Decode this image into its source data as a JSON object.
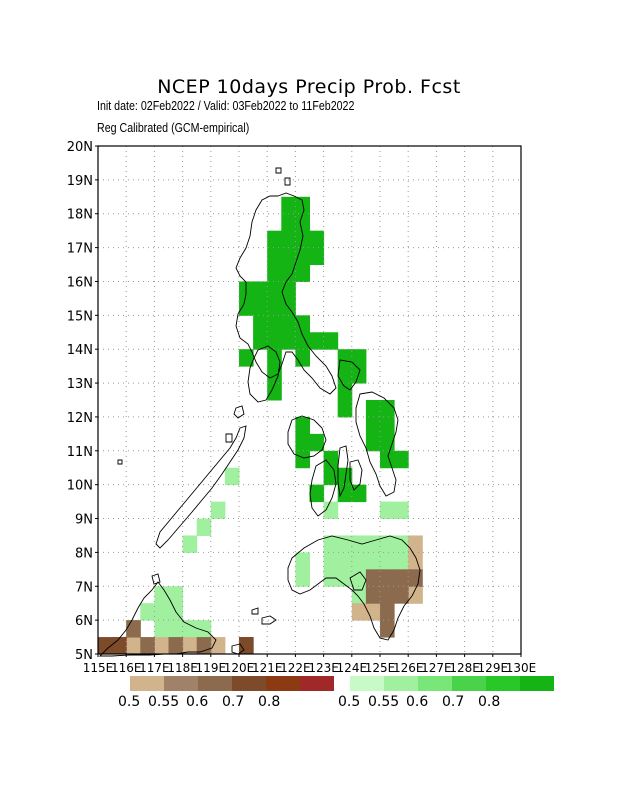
{
  "header": {
    "title": "NCEP 10days Precip Prob. Fcst",
    "subtitle1": "Init date: 02Feb2022 / Valid: 03Feb2022 to 11Feb2022",
    "subtitle2": "Reg Calibrated (GCM-empirical)"
  },
  "axes": {
    "lat_labels": [
      "5N",
      "6N",
      "7N",
      "8N",
      "9N",
      "10N",
      "11N",
      "12N",
      "13N",
      "14N",
      "15N",
      "16N",
      "17N",
      "18N",
      "19N",
      "20N"
    ],
    "lon_labels": [
      "115E",
      "116E",
      "117E",
      "118E",
      "119E",
      "120E",
      "121E",
      "122E",
      "123E",
      "124E",
      "125E",
      "126E",
      "127E",
      "128E",
      "129E",
      "130E"
    ],
    "lat_range": [
      5,
      20
    ],
    "lon_range": [
      115,
      130
    ],
    "grid": true
  },
  "legend_dry": {
    "labels": [
      "0.5",
      "0.55",
      "0.6",
      "0.7",
      "0.8"
    ],
    "colors": [
      "#d2b48c",
      "#a08268",
      "#8b6a4e",
      "#7d4b2a",
      "#8b3a14",
      "#a02828"
    ]
  },
  "legend_wet": {
    "labels": [
      "0.5",
      "0.55",
      "0.6",
      "0.7",
      "0.8"
    ],
    "colors": [
      "#c8fac8",
      "#a0f0a0",
      "#78e678",
      "#4ad24a",
      "#28c828",
      "#14b414"
    ]
  },
  "chart_data": {
    "type": "heatmap",
    "cell_deg": 0.5,
    "wet_cells": [
      [
        121.5,
        18
      ],
      [
        122,
        18
      ],
      [
        121.5,
        17.5
      ],
      [
        122,
        17.5
      ],
      [
        121,
        17
      ],
      [
        121.5,
        17
      ],
      [
        122,
        17
      ],
      [
        122.5,
        17
      ],
      [
        121,
        16.5
      ],
      [
        121.5,
        16.5
      ],
      [
        122,
        16.5
      ],
      [
        122.5,
        16.5
      ],
      [
        121,
        16
      ],
      [
        121.5,
        16
      ],
      [
        122,
        16
      ],
      [
        120,
        15.5
      ],
      [
        120.5,
        15.5
      ],
      [
        121,
        15.5
      ],
      [
        121.5,
        15.5
      ],
      [
        120,
        15
      ],
      [
        120.5,
        15
      ],
      [
        121,
        15
      ],
      [
        121.5,
        15
      ],
      [
        120.5,
        14.5
      ],
      [
        121,
        14.5
      ],
      [
        121.5,
        14.5
      ],
      [
        122,
        14.5
      ],
      [
        120.5,
        14
      ],
      [
        121,
        14
      ],
      [
        121.5,
        14
      ],
      [
        122,
        14
      ],
      [
        122.5,
        14
      ],
      [
        123,
        14
      ],
      [
        120,
        13.5
      ],
      [
        121,
        13.5
      ],
      [
        122,
        13.5
      ],
      [
        123.5,
        13.5
      ],
      [
        124,
        13.5
      ],
      [
        121,
        13
      ],
      [
        123.5,
        13
      ],
      [
        124,
        13
      ],
      [
        121,
        12.5
      ],
      [
        123.5,
        12.5
      ],
      [
        123.5,
        12
      ],
      [
        124.5,
        12
      ],
      [
        125,
        12
      ],
      [
        122,
        11.5
      ],
      [
        124.5,
        11.5
      ],
      [
        125,
        11.5
      ],
      [
        122,
        11
      ],
      [
        122.5,
        11
      ],
      [
        124.5,
        11
      ],
      [
        125,
        11
      ],
      [
        122,
        10.5
      ],
      [
        123,
        10.5
      ],
      [
        125,
        10.5
      ],
      [
        125.5,
        10.5
      ],
      [
        123,
        10
      ],
      [
        123.5,
        10
      ],
      [
        122.5,
        9.5
      ],
      [
        123.5,
        9.5
      ],
      [
        124,
        9.5
      ]
    ],
    "light_wet_cells": [
      [
        119.5,
        10
      ],
      [
        119,
        9
      ],
      [
        118.5,
        8.5
      ],
      [
        118,
        8
      ],
      [
        123,
        9
      ],
      [
        125,
        9
      ],
      [
        125.5,
        9
      ],
      [
        123,
        8
      ],
      [
        123.5,
        8
      ],
      [
        124,
        8
      ],
      [
        124.5,
        8
      ],
      [
        125,
        8
      ],
      [
        125.5,
        8
      ],
      [
        122,
        7.5
      ],
      [
        123,
        7.5
      ],
      [
        123.5,
        7.5
      ],
      [
        124,
        7.5
      ],
      [
        124.5,
        7.5
      ],
      [
        125,
        7.5
      ],
      [
        125.5,
        7.5
      ],
      [
        122,
        7
      ],
      [
        123,
        7
      ],
      [
        123.5,
        7
      ],
      [
        124,
        7
      ],
      [
        124.5,
        7
      ],
      [
        125,
        7
      ],
      [
        125.5,
        7
      ],
      [
        124,
        6.5
      ],
      [
        126,
        6.5
      ],
      [
        117,
        6.5
      ],
      [
        117.5,
        6.5
      ],
      [
        116.5,
        6
      ],
      [
        117,
        6
      ],
      [
        117.5,
        6
      ],
      [
        116,
        5.5
      ],
      [
        117,
        5.5
      ],
      [
        117.5,
        5.5
      ],
      [
        118,
        5.5
      ],
      [
        118.5,
        5.5
      ]
    ],
    "dry_cells": [
      [
        126,
        8
      ],
      [
        126,
        7.5
      ],
      [
        126,
        6.5
      ],
      [
        124,
        6
      ],
      [
        124.5,
        6
      ],
      [
        116,
        5
      ],
      [
        117,
        5
      ],
      [
        118,
        5
      ],
      [
        119,
        5
      ]
    ],
    "medium_dry_cells": [
      [
        124.5,
        7
      ],
      [
        125,
        7
      ],
      [
        124.5,
        6.5
      ],
      [
        125,
        6.5
      ],
      [
        125,
        6
      ],
      [
        125,
        5.5
      ],
      [
        125.5,
        7
      ],
      [
        125.5,
        6.5
      ],
      [
        126,
        7
      ],
      [
        115.5,
        5
      ],
      [
        116.5,
        5
      ],
      [
        117.5,
        5
      ],
      [
        118.5,
        5
      ],
      [
        116,
        5.5
      ],
      [
        120,
        5
      ]
    ],
    "dark_dry_cells": [
      [
        115.5,
        5
      ],
      [
        115,
        5
      ],
      [
        120,
        5
      ]
    ]
  }
}
